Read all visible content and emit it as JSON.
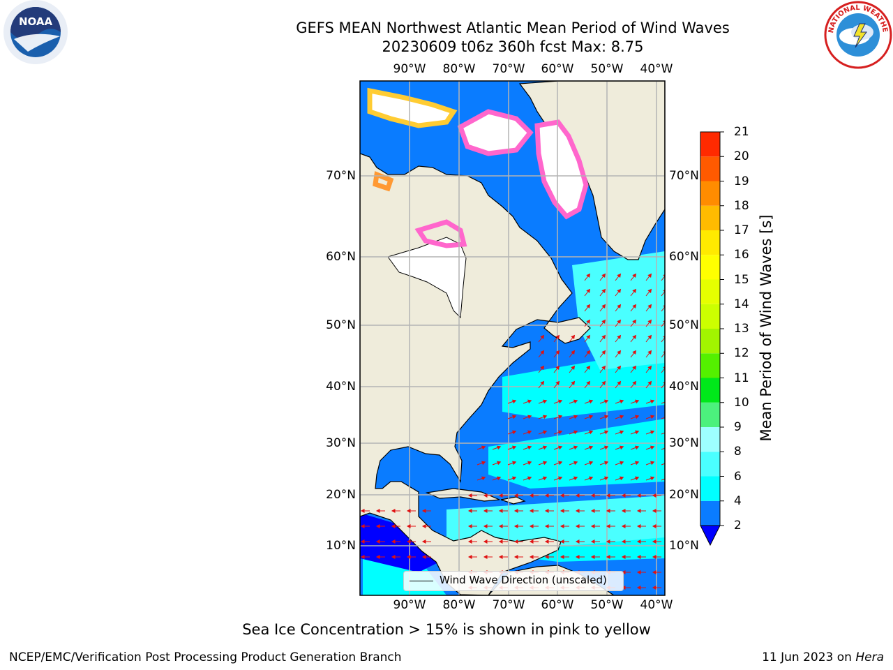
{
  "title": {
    "line1": "GEFS MEAN Northwest Atlantic Mean Period of Wind Waves",
    "line2": "20230609 t06z 360h fcst   Max: 8.75"
  },
  "map": {
    "lon_labels": [
      "90°W",
      "80°W",
      "70°W",
      "60°W",
      "50°W",
      "40°W"
    ],
    "lat_labels": [
      "70°N",
      "60°N",
      "50°N",
      "40°N",
      "30°N",
      "20°N",
      "10°N"
    ],
    "legend_label": "Wind Wave Direction (unscaled)",
    "colors": {
      "land": "#efecdb",
      "ice_free_land_white": "#ffffff",
      "grid": "#b4b4b4",
      "arrows": "#e01010",
      "sea_ice": [
        "#ff66cc",
        "#ff9933",
        "#ffcc33"
      ]
    }
  },
  "colorbar": {
    "title": "Mean Period of Wind Waves [s]",
    "ticks": [
      "2",
      "4",
      "6",
      "8",
      "9",
      "10",
      "11",
      "12",
      "13",
      "14",
      "15",
      "16",
      "17",
      "18",
      "19",
      "20",
      "21"
    ],
    "colors": [
      "#0a7cff",
      "#00ffff",
      "#4affff",
      "#9effff",
      "#4cf17d",
      "#00e81a",
      "#54f000",
      "#a2f400",
      "#ccff00",
      "#e6ff00",
      "#ffff00",
      "#ffea00",
      "#ffbb00",
      "#ff8c00",
      "#ff5a00",
      "#ff2a00"
    ],
    "extend_color": "#0000ff"
  },
  "notes": {
    "ice": "Sea Ice Concentration > 15% is shown in pink to yellow"
  },
  "footer": {
    "left": "NCEP/EMC/Verification Post Processing Product Generation Branch",
    "right_date": "11 Jun 2023 on",
    "right_system": "Hera"
  },
  "logos": {
    "noaa_text": "NOAA",
    "nws_text": "NATIONAL WEATHER SERVICE"
  }
}
